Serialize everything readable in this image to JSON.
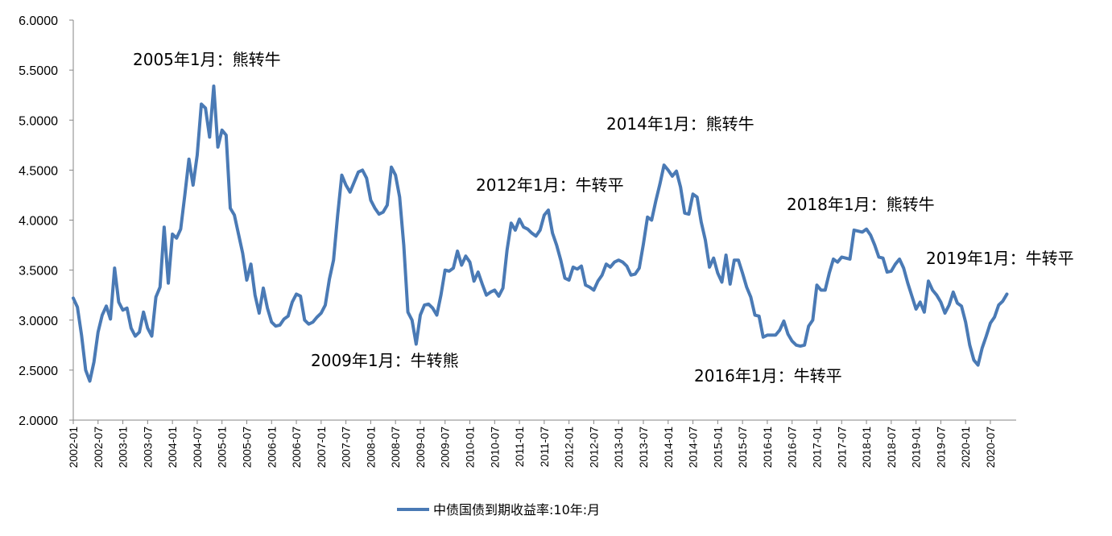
{
  "chart_data": {
    "type": "line",
    "ylim": [
      2.0,
      6.0
    ],
    "y_ticks": [
      "2.0000",
      "2.5000",
      "3.0000",
      "3.5000",
      "4.0000",
      "4.5000",
      "5.0000",
      "5.5000",
      "6.0000"
    ],
    "x_tick_labels": [
      "2002-01",
      "2002-07",
      "2003-01",
      "2003-07",
      "2004-01",
      "2004-07",
      "2005-01",
      "2005-07",
      "2006-01",
      "2006-07",
      "2007-01",
      "2007-07",
      "2008-01",
      "2008-07",
      "2009-01",
      "2009-07",
      "2010-01",
      "2010-07",
      "2011-01",
      "2011-07",
      "2012-01",
      "2012-07",
      "2013-01",
      "2013-07",
      "2014-01",
      "2014-07",
      "2015-01",
      "2015-07",
      "2016-01",
      "2016-07",
      "2017-01",
      "2017-07",
      "2018-01",
      "2018-07",
      "2019-01",
      "2019-07",
      "2020-01",
      "2020-07"
    ],
    "x_start": "2002-01",
    "series": [
      {
        "name": "中债国债到期收益率:10年:月",
        "color": "#4a7ab5",
        "values": [
          3.22,
          3.13,
          2.85,
          2.5,
          2.39,
          2.58,
          2.88,
          3.05,
          3.14,
          3.01,
          3.52,
          3.18,
          3.1,
          3.12,
          2.92,
          2.84,
          2.88,
          3.08,
          2.92,
          2.84,
          3.23,
          3.33,
          3.93,
          3.37,
          3.86,
          3.82,
          3.91,
          4.25,
          4.61,
          4.35,
          4.65,
          5.16,
          5.12,
          4.83,
          5.34,
          4.73,
          4.9,
          4.85,
          4.12,
          4.05,
          3.86,
          3.67,
          3.4,
          3.56,
          3.25,
          3.07,
          3.32,
          3.12,
          2.98,
          2.94,
          2.95,
          3.01,
          3.04,
          3.18,
          3.26,
          3.24,
          3.0,
          2.96,
          2.98,
          3.03,
          3.07,
          3.15,
          3.41,
          3.6,
          4.05,
          4.45,
          4.35,
          4.28,
          4.38,
          4.48,
          4.5,
          4.42,
          4.2,
          4.12,
          4.06,
          4.08,
          4.15,
          4.53,
          4.45,
          4.23,
          3.75,
          3.08,
          3.0,
          2.76,
          3.05,
          3.15,
          3.16,
          3.12,
          3.05,
          3.25,
          3.5,
          3.49,
          3.52,
          3.69,
          3.55,
          3.64,
          3.58,
          3.39,
          3.48,
          3.36,
          3.25,
          3.28,
          3.3,
          3.24,
          3.32,
          3.7,
          3.97,
          3.9,
          4.01,
          3.93,
          3.91,
          3.87,
          3.84,
          3.9,
          4.05,
          4.1,
          3.87,
          3.75,
          3.6,
          3.42,
          3.4,
          3.53,
          3.51,
          3.54,
          3.35,
          3.33,
          3.3,
          3.39,
          3.45,
          3.56,
          3.53,
          3.58,
          3.6,
          3.58,
          3.54,
          3.45,
          3.46,
          3.52,
          3.76,
          4.03,
          4.0,
          4.19,
          4.36,
          4.55,
          4.5,
          4.44,
          4.49,
          4.33,
          4.07,
          4.06,
          4.26,
          4.23,
          3.98,
          3.8,
          3.53,
          3.62,
          3.47,
          3.38,
          3.65,
          3.36,
          3.6,
          3.6,
          3.47,
          3.33,
          3.23,
          3.05,
          3.04,
          2.83,
          2.85,
          2.85,
          2.85,
          2.9,
          2.99,
          2.86,
          2.79,
          2.75,
          2.74,
          2.75,
          2.94,
          3.0,
          3.35,
          3.3,
          3.3,
          3.47,
          3.61,
          3.58,
          3.63,
          3.62,
          3.61,
          3.9,
          3.89,
          3.88,
          3.91,
          3.85,
          3.75,
          3.63,
          3.62,
          3.48,
          3.49,
          3.56,
          3.61,
          3.52,
          3.37,
          3.24,
          3.11,
          3.18,
          3.08,
          3.39,
          3.3,
          3.25,
          3.18,
          3.07,
          3.15,
          3.28,
          3.17,
          3.14,
          2.98,
          2.75,
          2.6,
          2.55,
          2.72,
          2.84,
          2.97,
          3.03,
          3.15,
          3.19,
          3.26
        ]
      }
    ],
    "annotations": [
      {
        "text": "2005年1月：熊转牛",
        "date": "2005-01"
      },
      {
        "text": "2009年1月：牛转熊",
        "date": "2009-01"
      },
      {
        "text": "2012年1月：牛转平",
        "date": "2012-01"
      },
      {
        "text": "2014年1月：熊转牛",
        "date": "2014-01"
      },
      {
        "text": "2016年1月：牛转平",
        "date": "2016-01"
      },
      {
        "text": "2018年1月：熊转牛",
        "date": "2018-01"
      },
      {
        "text": "2019年1月：牛转平",
        "date": "2019-01"
      }
    ],
    "grid": false,
    "legend_position": "bottom-center"
  }
}
